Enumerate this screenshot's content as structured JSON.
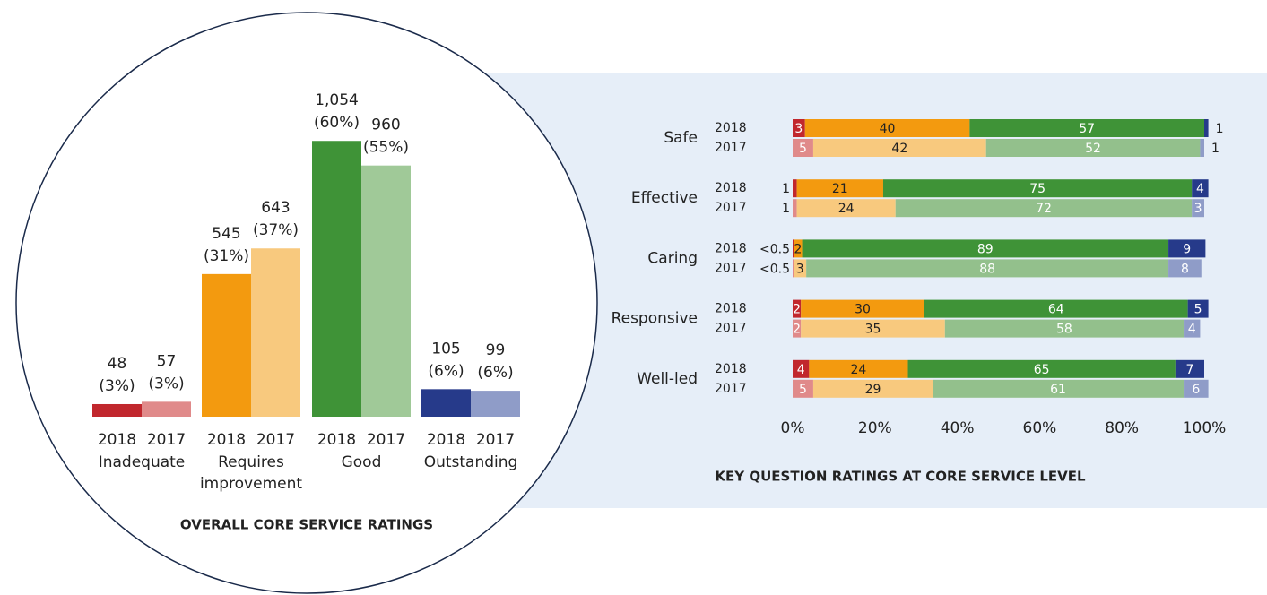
{
  "chart_data": [
    {
      "type": "bar",
      "title": "OVERALL CORE SERVICE RATINGS",
      "categories": [
        "Inadequate",
        "Requires improvement",
        "Good",
        "Outstanding"
      ],
      "series": [
        {
          "name": "2018",
          "colors": [
            "#c1272d",
            "#f39a0f",
            "#3f9337",
            "#263a8a"
          ],
          "values": [
            48,
            545,
            1054,
            105
          ],
          "value_labels": [
            "48 (3%)",
            "545 (31%)",
            "1,054 (60%)",
            "105 (6%)"
          ]
        },
        {
          "name": "2017",
          "colors": [
            "#e08a8a",
            "#f8c97e",
            "#a0c998",
            "#8f9cc8"
          ],
          "values": [
            57,
            643,
            960,
            99
          ],
          "value_labels": [
            "57 (3%)",
            "643 (37%)",
            "960 (55%)",
            "99 (6%)"
          ]
        }
      ]
    },
    {
      "type": "stacked_barh",
      "title": "KEY QUESTION RATINGS AT CORE SERVICE LEVEL",
      "categories": [
        "Safe",
        "Effective",
        "Caring",
        "Responsive",
        "Well-led"
      ],
      "xlim": [
        0,
        100
      ],
      "xticks": [
        {
          "value": 0,
          "label": "0%"
        },
        {
          "value": 20,
          "label": "20%"
        },
        {
          "value": 40,
          "label": "40%"
        },
        {
          "value": 60,
          "label": "60%"
        },
        {
          "value": 80,
          "label": "80%"
        },
        {
          "value": 100,
          "label": "100%"
        }
      ],
      "series": [
        {
          "name": "2018",
          "colors": [
            "#c1272d",
            "#f39a0f",
            "#3f9337",
            "#263a8a"
          ],
          "values": [
            [
              3,
              40,
              57,
              1
            ],
            [
              1,
              21,
              75,
              4
            ],
            [
              0.3,
              2,
              89,
              9
            ],
            [
              2,
              30,
              64,
              5
            ],
            [
              4,
              24,
              65,
              7
            ]
          ],
          "value_labels": [
            [
              "3",
              "40",
              "57",
              "1"
            ],
            [
              "1",
              "21",
              "75",
              "4"
            ],
            [
              "<0.5",
              "2",
              "89",
              "9"
            ],
            [
              "2",
              "30",
              "64",
              "5"
            ],
            [
              "4",
              "24",
              "65",
              "7"
            ]
          ]
        },
        {
          "name": "2017",
          "colors": [
            "#e08a8a",
            "#f8c97e",
            "#93c08c",
            "#8f9cc8"
          ],
          "values": [
            [
              5,
              42,
              52,
              1
            ],
            [
              1,
              24,
              72,
              3
            ],
            [
              0.3,
              3,
              88,
              8
            ],
            [
              2,
              35,
              58,
              4
            ],
            [
              5,
              29,
              61,
              6
            ]
          ],
          "value_labels": [
            [
              "5",
              "42",
              "52",
              "1"
            ],
            [
              "1",
              "24",
              "72",
              "3"
            ],
            [
              "<0.5",
              "3",
              "88",
              "8"
            ],
            [
              "2",
              "35",
              "58",
              "4"
            ],
            [
              "5",
              "29",
              "61",
              "6"
            ]
          ]
        }
      ]
    }
  ]
}
